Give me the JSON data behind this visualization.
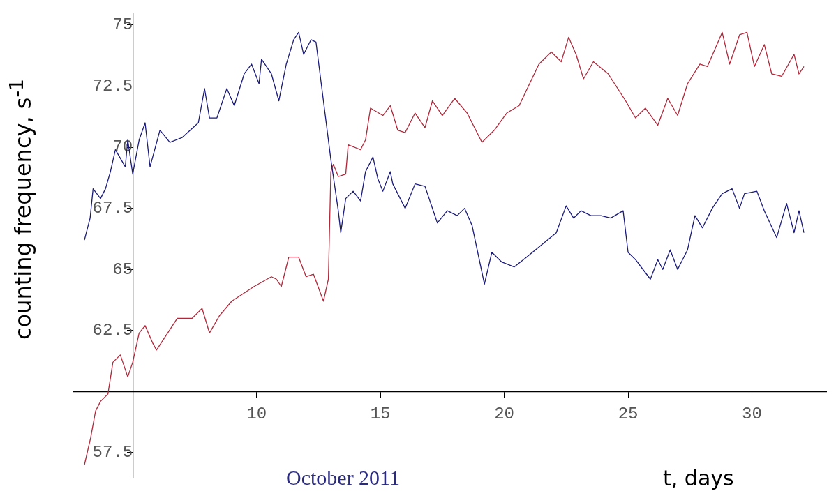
{
  "chart_data": {
    "type": "line",
    "xlabel": "t, days",
    "ylabel": "counting frequency, s$^{-1}$",
    "annotations": [
      "October 2011"
    ],
    "xlim": [
      2.6,
      33
    ],
    "ylim": [
      56.5,
      75.5
    ],
    "xticks": [
      {
        "value": 5,
        "label": null
      },
      10,
      15,
      20,
      25,
      30
    ],
    "yticks": [
      57.5,
      {
        "value": 60,
        "label": null
      },
      62.5,
      65,
      67.5,
      70,
      72.5,
      75
    ],
    "grid": false,
    "legend": false,
    "marker": "none",
    "line_style": "solid",
    "series": [
      {
        "color": "#1a1a7a",
        "x": [
          3.05,
          3.28,
          3.4,
          3.7,
          3.9,
          4.1,
          4.3,
          4.7,
          4.8,
          5.0,
          5.26,
          5.5,
          5.7,
          6.1,
          6.5,
          7.0,
          7.65,
          7.9,
          8.1,
          8.4,
          8.8,
          9.1,
          9.5,
          9.8,
          10.1,
          10.2,
          10.6,
          10.9,
          11.2,
          11.5,
          11.7,
          11.9,
          12.2,
          12.4,
          12.5,
          13.0,
          13.3,
          13.4,
          13.6,
          13.9,
          14.2,
          14.4,
          14.7,
          14.9,
          15.1,
          15.4,
          15.5,
          16.0,
          16.4,
          16.8,
          17.3,
          17.7,
          18.1,
          18.4,
          18.7,
          19.2,
          19.5,
          19.9,
          20.4,
          20.9,
          21.5,
          22.1,
          22.5,
          22.8,
          23.1,
          23.5,
          23.9,
          24.3,
          24.8,
          25.0,
          25.3,
          25.6,
          25.9,
          26.2,
          26.4,
          26.7,
          27.0,
          27.4,
          27.7,
          28.0,
          28.4,
          28.8,
          29.2,
          29.5,
          29.7,
          30.2,
          30.5,
          31.0,
          31.4,
          31.7,
          31.9,
          32.1
        ],
        "values": [
          66.2,
          67.1,
          68.3,
          67.9,
          68.3,
          69.0,
          69.9,
          69.2,
          70.3,
          68.9,
          70.3,
          71.0,
          69.2,
          70.7,
          70.2,
          70.4,
          71.0,
          72.4,
          71.2,
          71.2,
          72.4,
          71.7,
          73.0,
          73.4,
          72.6,
          73.6,
          73.0,
          71.9,
          73.4,
          74.4,
          74.7,
          73.8,
          74.4,
          74.3,
          73.5,
          69.5,
          67.4,
          66.5,
          67.9,
          68.2,
          67.8,
          69.0,
          69.6,
          68.7,
          68.2,
          69.0,
          68.5,
          67.5,
          68.5,
          68.4,
          66.9,
          67.4,
          67.2,
          67.5,
          66.8,
          64.4,
          65.7,
          65.3,
          65.1,
          65.5,
          66.0,
          66.5,
          67.6,
          67.1,
          67.4,
          67.2,
          67.2,
          67.1,
          67.4,
          65.7,
          65.4,
          65.0,
          64.6,
          65.4,
          65.0,
          65.8,
          65.0,
          65.8,
          67.2,
          66.7,
          67.5,
          68.1,
          68.3,
          67.5,
          68.1,
          68.2,
          67.4,
          66.3,
          67.7,
          66.5,
          67.4,
          66.5
        ]
      },
      {
        "color": "#b0283a",
        "x": [
          3.05,
          3.3,
          3.5,
          3.7,
          4.0,
          4.2,
          4.5,
          4.8,
          5.0,
          5.26,
          5.5,
          5.8,
          5.96,
          6.8,
          7.4,
          7.8,
          8.1,
          8.5,
          9.0,
          9.9,
          10.6,
          10.8,
          11.0,
          11.3,
          11.7,
          12.0,
          12.3,
          12.7,
          12.9,
          13.0,
          13.1,
          13.3,
          13.6,
          13.7,
          14.2,
          14.4,
          14.6,
          15.1,
          15.4,
          15.7,
          16.0,
          16.4,
          16.8,
          17.1,
          17.5,
          18.0,
          18.5,
          19.1,
          19.6,
          20.1,
          20.6,
          21.4,
          21.9,
          22.3,
          22.6,
          22.9,
          23.2,
          23.6,
          24.2,
          24.9,
          25.3,
          25.7,
          26.2,
          26.6,
          27.0,
          27.4,
          27.9,
          28.2,
          28.8,
          29.1,
          29.5,
          29.8,
          30.1,
          30.5,
          30.8,
          31.2,
          31.7,
          31.9,
          32.1
        ],
        "values": [
          57.0,
          58.1,
          59.2,
          59.6,
          59.9,
          61.2,
          61.5,
          60.6,
          61.2,
          62.4,
          62.7,
          62.0,
          61.7,
          63.0,
          63.0,
          63.4,
          62.4,
          63.1,
          63.7,
          64.3,
          64.7,
          64.6,
          64.3,
          65.5,
          65.5,
          64.7,
          64.8,
          63.7,
          64.6,
          69.0,
          69.3,
          68.8,
          68.9,
          70.1,
          69.9,
          70.3,
          71.6,
          71.3,
          71.7,
          70.7,
          70.6,
          71.4,
          70.8,
          71.9,
          71.3,
          72.0,
          71.4,
          70.2,
          70.7,
          71.4,
          71.7,
          73.4,
          73.9,
          73.5,
          74.5,
          73.8,
          72.8,
          73.5,
          73.0,
          71.9,
          71.2,
          71.6,
          70.9,
          72.0,
          71.3,
          72.6,
          73.4,
          73.3,
          74.7,
          73.4,
          74.6,
          74.7,
          73.3,
          74.2,
          73.0,
          72.9,
          73.8,
          73.0,
          73.3
        ]
      }
    ]
  }
}
